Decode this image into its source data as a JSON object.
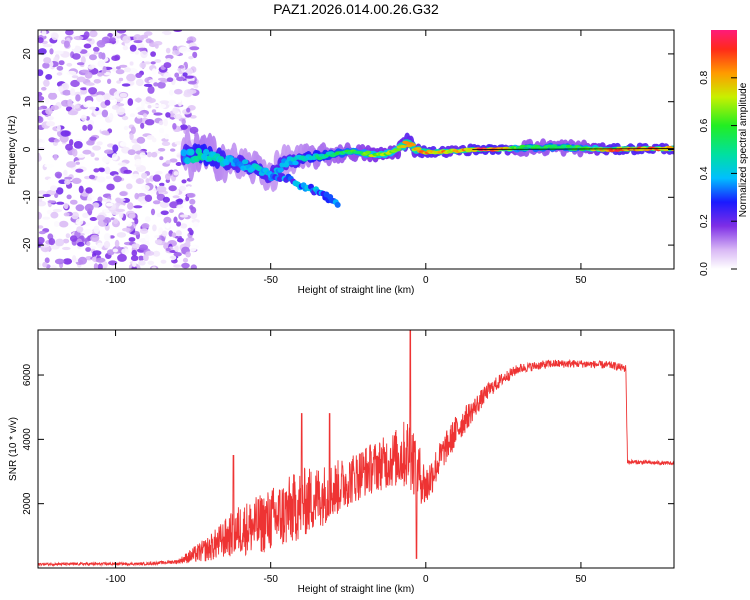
{
  "title": "PAZ1.2026.014.00.26.G32",
  "colors": {
    "snr_line": "#ee3333",
    "frame": "#000000"
  },
  "chart_data": [
    {
      "type": "heatmap",
      "xlabel": "Height of straight line (km)",
      "ylabel": "Frequency (Hz)",
      "xlim": [
        -125,
        80
      ],
      "ylim": [
        -25,
        25
      ],
      "xticks": [
        -100,
        -50,
        0,
        50
      ],
      "yticks": [
        -20,
        -10,
        0,
        10,
        20
      ],
      "colorbar": {
        "label": "Normalized spectral amplitude",
        "range": [
          0,
          1
        ],
        "ticks": [
          "0.0",
          "0.2",
          "0.4",
          "0.6",
          "0.8"
        ]
      },
      "noise_region": {
        "x": [
          -125,
          -78
        ],
        "y": [
          -25,
          25
        ]
      },
      "ridge": [
        {
          "x": -78,
          "f": -1.5,
          "amp": 0.4,
          "spread": 3.5
        },
        {
          "x": -72,
          "f": -1.0,
          "amp": 0.5,
          "spread": 3.0
        },
        {
          "x": -66,
          "f": -2.0,
          "amp": 0.45,
          "spread": 3.0
        },
        {
          "x": -60,
          "f": -3.0,
          "amp": 0.4,
          "spread": 2.5
        },
        {
          "x": -54,
          "f": -4.0,
          "amp": 0.45,
          "spread": 2.5
        },
        {
          "x": -50,
          "f": -5.5,
          "amp": 0.4,
          "spread": 2.5
        },
        {
          "x": -45,
          "f": -2.5,
          "amp": 0.4,
          "spread": 2.5
        },
        {
          "x": -40,
          "f": -2.0,
          "amp": 0.45,
          "spread": 2.0
        },
        {
          "x": -36,
          "f": -1.5,
          "amp": 0.5,
          "spread": 1.8
        },
        {
          "x": -30,
          "f": -1.0,
          "amp": 0.55,
          "spread": 1.5
        },
        {
          "x": -25,
          "f": -0.5,
          "amp": 0.6,
          "spread": 1.3
        },
        {
          "x": -20,
          "f": -0.8,
          "amp": 0.65,
          "spread": 1.2
        },
        {
          "x": -15,
          "f": -1.2,
          "amp": 0.75,
          "spread": 1.1
        },
        {
          "x": -10,
          "f": -0.5,
          "amp": 0.7,
          "spread": 1.2
        },
        {
          "x": -6,
          "f": 1.5,
          "amp": 0.85,
          "spread": 1.5
        },
        {
          "x": -3,
          "f": 0.0,
          "amp": 0.8,
          "spread": 1.2
        },
        {
          "x": 0,
          "f": -0.5,
          "amp": 0.9,
          "spread": 0.8
        },
        {
          "x": 5,
          "f": -0.5,
          "amp": 0.85,
          "spread": 0.8
        },
        {
          "x": 10,
          "f": -0.3,
          "amp": 0.8,
          "spread": 0.8
        },
        {
          "x": 15,
          "f": 0.0,
          "amp": 0.9,
          "spread": 0.8
        },
        {
          "x": 20,
          "f": 0.0,
          "amp": 0.95,
          "spread": 0.7
        },
        {
          "x": 25,
          "f": 0.0,
          "amp": 0.92,
          "spread": 0.7
        },
        {
          "x": 30,
          "f": 0.3,
          "amp": 0.6,
          "spread": 1.2
        },
        {
          "x": 40,
          "f": 0.5,
          "amp": 0.6,
          "spread": 1.2
        },
        {
          "x": 50,
          "f": 0.3,
          "amp": 0.6,
          "spread": 1.2
        },
        {
          "x": 60,
          "f": 0.0,
          "amp": 0.9,
          "spread": 0.8
        },
        {
          "x": 70,
          "f": 0.2,
          "amp": 0.9,
          "spread": 0.8
        },
        {
          "x": 80,
          "f": 0.2,
          "amp": 0.85,
          "spread": 0.8
        }
      ],
      "branches": [
        {
          "points": [
            {
              "x": -50,
              "f": -5
            },
            {
              "x": -45,
              "f": -6
            },
            {
              "x": -40,
              "f": -7.5
            },
            {
              "x": -36,
              "f": -8.5
            },
            {
              "x": -32,
              "f": -10
            },
            {
              "x": -28,
              "f": -11.5
            }
          ],
          "amp": 0.35
        }
      ]
    },
    {
      "type": "line",
      "xlabel": "Height of straight line (km)",
      "ylabel": "SNR (10 * v/v)",
      "xlim": [
        -125,
        80
      ],
      "ylim": [
        0,
        7400
      ],
      "xticks": [
        -100,
        -50,
        0,
        50
      ],
      "yticks": [
        2000,
        4000,
        6000
      ],
      "series": [
        {
          "envelope": [
            {
              "x": -125,
              "y": 120,
              "noise": 40
            },
            {
              "x": -90,
              "y": 130,
              "noise": 40
            },
            {
              "x": -80,
              "y": 200,
              "noise": 60
            },
            {
              "x": -75,
              "y": 400,
              "noise": 250
            },
            {
              "x": -70,
              "y": 600,
              "noise": 400
            },
            {
              "x": -65,
              "y": 900,
              "noise": 600
            },
            {
              "x": -60,
              "y": 1200,
              "noise": 800
            },
            {
              "x": -55,
              "y": 1300,
              "noise": 900
            },
            {
              "x": -50,
              "y": 1500,
              "noise": 1000
            },
            {
              "x": -45,
              "y": 1700,
              "noise": 1100
            },
            {
              "x": -40,
              "y": 2000,
              "noise": 1100
            },
            {
              "x": -35,
              "y": 2200,
              "noise": 1000
            },
            {
              "x": -30,
              "y": 2400,
              "noise": 900
            },
            {
              "x": -25,
              "y": 2700,
              "noise": 800
            },
            {
              "x": -20,
              "y": 3000,
              "noise": 800
            },
            {
              "x": -15,
              "y": 3200,
              "noise": 800
            },
            {
              "x": -10,
              "y": 3400,
              "noise": 900
            },
            {
              "x": -5,
              "y": 3600,
              "noise": 1200
            },
            {
              "x": 0,
              "y": 2500,
              "noise": 700
            },
            {
              "x": 5,
              "y": 3500,
              "noise": 500
            },
            {
              "x": 10,
              "y": 4300,
              "noise": 500
            },
            {
              "x": 15,
              "y": 4900,
              "noise": 350
            },
            {
              "x": 20,
              "y": 5500,
              "noise": 250
            },
            {
              "x": 25,
              "y": 5900,
              "noise": 200
            },
            {
              "x": 30,
              "y": 6200,
              "noise": 150
            },
            {
              "x": 40,
              "y": 6350,
              "noise": 130
            },
            {
              "x": 50,
              "y": 6350,
              "noise": 120
            },
            {
              "x": 60,
              "y": 6300,
              "noise": 120
            },
            {
              "x": 64.5,
              "y": 6200,
              "noise": 120
            },
            {
              "x": 65,
              "y": 3300,
              "noise": 70
            },
            {
              "x": 80,
              "y": 3250,
              "noise": 50
            }
          ],
          "spikes": [
            {
              "x": -5,
              "y": 7400
            },
            {
              "x": -3,
              "y": 300
            },
            {
              "x": -62,
              "y": 3500
            },
            {
              "x": -40,
              "y": 4800
            },
            {
              "x": -31,
              "y": 4800
            }
          ]
        }
      ]
    }
  ]
}
